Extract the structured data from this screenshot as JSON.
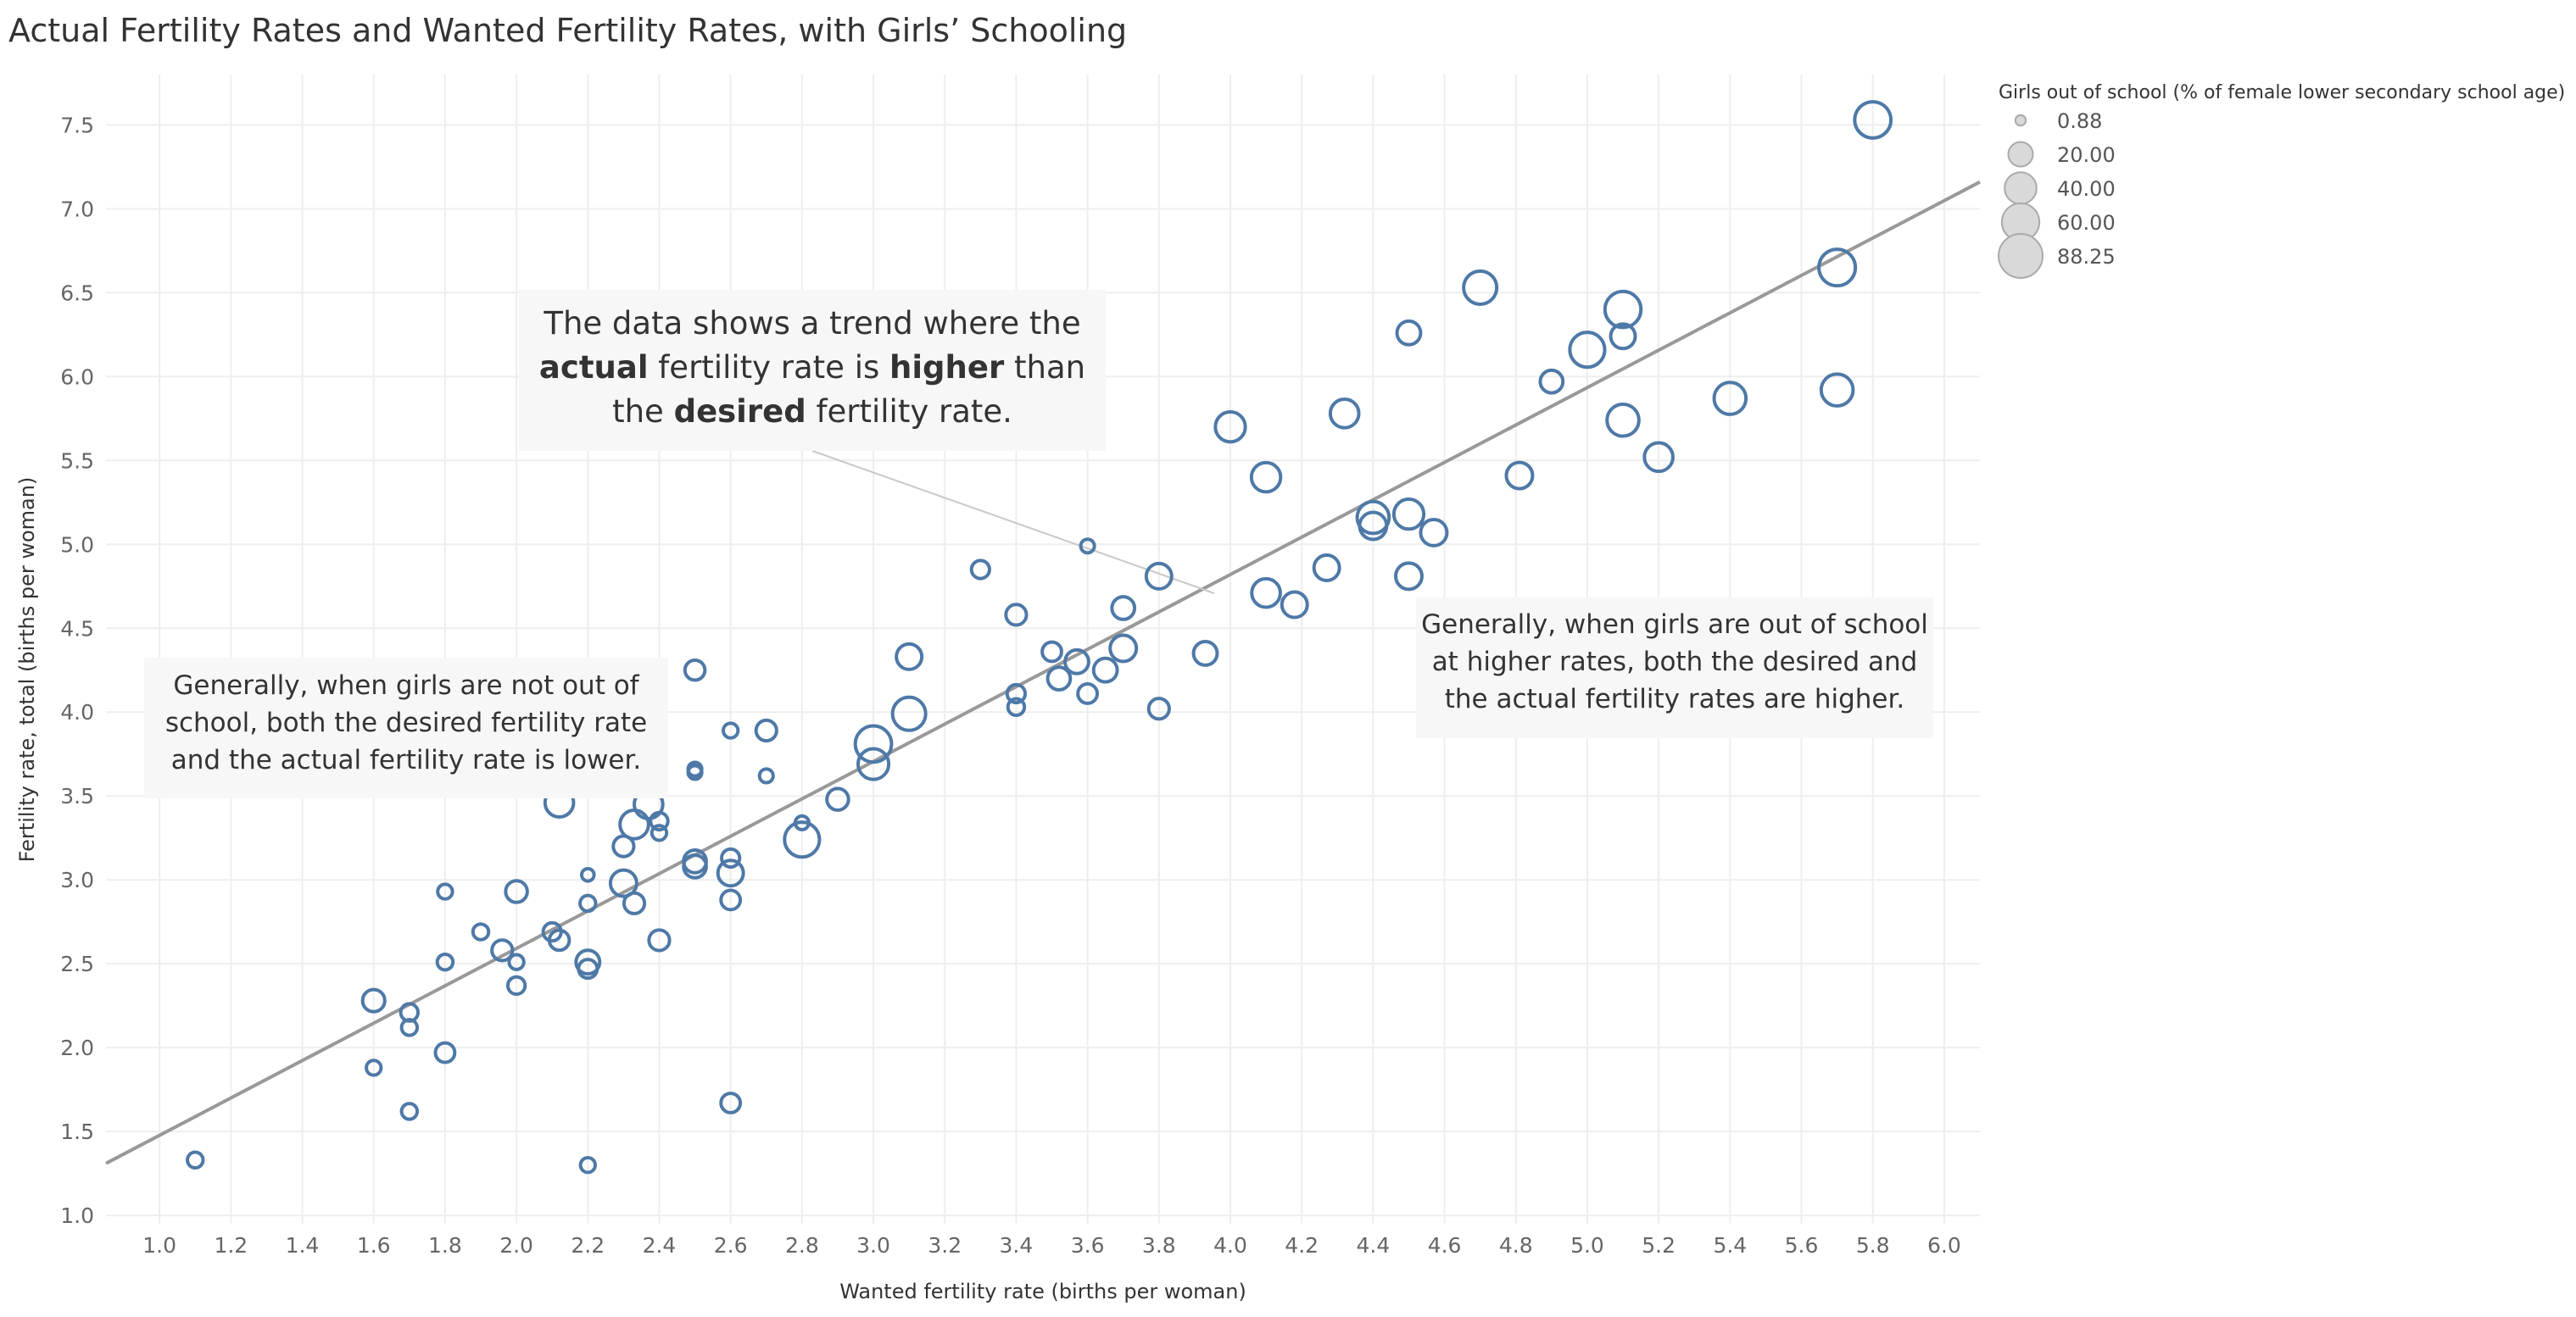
{
  "title": "Actual Fertility Rates and Wanted Fertility Rates, with Girls’ Schooling",
  "annotations": {
    "center": {
      "line1": "The data shows a trend where the",
      "line2_bold1": "actual",
      "line2_text": " fertility rate is ",
      "line2_bold2": "higher",
      "line2_end": " than",
      "line3_start": "the ",
      "line3_bold": "desired",
      "line3_end": " fertility rate."
    },
    "left": {
      "line1": "Generally, when girls are not out of",
      "line2": "school, both the desired fertility rate",
      "line3": "and the actual fertility rate is lower."
    },
    "right": {
      "line1": "Generally, when girls are out of school",
      "line2": "at higher rates, both the desired and",
      "line3": "the actual fertility rates are higher."
    }
  },
  "colors": {
    "point": "#4e79a7",
    "trend": "#999999",
    "grid": "#eeeeee",
    "legend_fill": "#d9d9d9",
    "legend_stroke": "#aaaaaa"
  },
  "chart_data": {
    "type": "scatter",
    "xlabel": "Wanted fertility rate (births per woman)",
    "ylabel": "Fertility rate, total (births per woman)",
    "xlim": [
      0.85,
      6.1
    ],
    "ylim": [
      0.95,
      7.8
    ],
    "x_ticks": [
      "1.0",
      "1.2",
      "1.4",
      "1.6",
      "1.8",
      "2.0",
      "2.2",
      "2.4",
      "2.6",
      "2.8",
      "3.0",
      "3.2",
      "3.4",
      "3.6",
      "3.8",
      "4.0",
      "4.2",
      "4.4",
      "4.6",
      "4.8",
      "5.0",
      "5.2",
      "5.4",
      "5.6",
      "5.8",
      "6.0"
    ],
    "y_ticks": [
      "1.0",
      "1.5",
      "2.0",
      "2.5",
      "3.0",
      "3.5",
      "4.0",
      "4.5",
      "5.0",
      "5.5",
      "6.0",
      "6.5",
      "7.0",
      "7.5"
    ],
    "grid": true,
    "size_legend": {
      "title": "Girls out of school (% of female lower secondary school age)",
      "placement": "top-right",
      "entries": [
        {
          "label": "0.88",
          "value": 0.88
        },
        {
          "label": "20.00",
          "value": 20
        },
        {
          "label": "40.00",
          "value": 40
        },
        {
          "label": "60.00",
          "value": 60
        },
        {
          "label": "88.25",
          "value": 88.25
        }
      ]
    },
    "trend_line": {
      "x": [
        0.85,
        6.1
      ],
      "y": [
        1.31,
        7.16
      ]
    },
    "points": [
      {
        "x": 1.1,
        "y": 1.33,
        "size": 5
      },
      {
        "x": 1.6,
        "y": 2.28,
        "size": 15
      },
      {
        "x": 1.6,
        "y": 1.88,
        "size": 4
      },
      {
        "x": 1.7,
        "y": 2.21,
        "size": 7
      },
      {
        "x": 1.7,
        "y": 2.12,
        "size": 5
      },
      {
        "x": 1.7,
        "y": 1.62,
        "size": 5
      },
      {
        "x": 1.8,
        "y": 2.93,
        "size": 4
      },
      {
        "x": 1.8,
        "y": 2.51,
        "size": 5
      },
      {
        "x": 1.8,
        "y": 1.97,
        "size": 10
      },
      {
        "x": 1.9,
        "y": 2.69,
        "size": 5
      },
      {
        "x": 1.96,
        "y": 2.58,
        "size": 12
      },
      {
        "x": 2.0,
        "y": 2.93,
        "size": 14
      },
      {
        "x": 2.0,
        "y": 2.51,
        "size": 4
      },
      {
        "x": 2.0,
        "y": 2.37,
        "size": 7
      },
      {
        "x": 2.1,
        "y": 2.69,
        "size": 8
      },
      {
        "x": 2.12,
        "y": 2.64,
        "size": 11
      },
      {
        "x": 2.12,
        "y": 3.46,
        "size": 30
      },
      {
        "x": 2.2,
        "y": 3.03,
        "size": 2
      },
      {
        "x": 2.2,
        "y": 2.86,
        "size": 5
      },
      {
        "x": 2.2,
        "y": 2.51,
        "size": 18
      },
      {
        "x": 2.2,
        "y": 2.47,
        "size": 9
      },
      {
        "x": 2.2,
        "y": 1.3,
        "size": 4
      },
      {
        "x": 2.3,
        "y": 3.2,
        "size": 12
      },
      {
        "x": 2.3,
        "y": 2.98,
        "size": 24
      },
      {
        "x": 2.33,
        "y": 3.33,
        "size": 30
      },
      {
        "x": 2.33,
        "y": 2.86,
        "size": 12
      },
      {
        "x": 2.37,
        "y": 3.45,
        "size": 30
      },
      {
        "x": 2.4,
        "y": 3.35,
        "size": 7
      },
      {
        "x": 2.4,
        "y": 3.28,
        "size": 4
      },
      {
        "x": 2.4,
        "y": 2.64,
        "size": 12
      },
      {
        "x": 2.5,
        "y": 4.25,
        "size": 11
      },
      {
        "x": 2.5,
        "y": 3.66,
        "size": 3
      },
      {
        "x": 2.5,
        "y": 3.64,
        "size": 3
      },
      {
        "x": 2.5,
        "y": 3.11,
        "size": 16
      },
      {
        "x": 2.5,
        "y": 3.08,
        "size": 16
      },
      {
        "x": 2.6,
        "y": 3.89,
        "size": 4
      },
      {
        "x": 2.6,
        "y": 3.13,
        "size": 8
      },
      {
        "x": 2.6,
        "y": 3.04,
        "size": 22
      },
      {
        "x": 2.6,
        "y": 2.88,
        "size": 10
      },
      {
        "x": 2.6,
        "y": 1.67,
        "size": 10
      },
      {
        "x": 2.7,
        "y": 3.89,
        "size": 12
      },
      {
        "x": 2.7,
        "y": 3.62,
        "size": 3
      },
      {
        "x": 2.8,
        "y": 3.34,
        "size": 3
      },
      {
        "x": 2.8,
        "y": 3.24,
        "size": 50
      },
      {
        "x": 2.9,
        "y": 3.48,
        "size": 14
      },
      {
        "x": 3.0,
        "y": 3.81,
        "size": 55
      },
      {
        "x": 3.0,
        "y": 3.69,
        "size": 36
      },
      {
        "x": 3.1,
        "y": 4.33,
        "size": 22
      },
      {
        "x": 3.1,
        "y": 3.99,
        "size": 44
      },
      {
        "x": 3.3,
        "y": 4.85,
        "size": 8
      },
      {
        "x": 3.4,
        "y": 4.58,
        "size": 12
      },
      {
        "x": 3.4,
        "y": 4.11,
        "size": 8
      },
      {
        "x": 3.4,
        "y": 4.03,
        "size": 6
      },
      {
        "x": 3.5,
        "y": 4.36,
        "size": 10
      },
      {
        "x": 3.52,
        "y": 4.2,
        "size": 16
      },
      {
        "x": 3.57,
        "y": 4.3,
        "size": 18
      },
      {
        "x": 3.6,
        "y": 4.99,
        "size": 3
      },
      {
        "x": 3.6,
        "y": 4.11,
        "size": 10
      },
      {
        "x": 3.65,
        "y": 4.25,
        "size": 18
      },
      {
        "x": 3.7,
        "y": 4.62,
        "size": 16
      },
      {
        "x": 3.7,
        "y": 4.38,
        "size": 24
      },
      {
        "x": 3.8,
        "y": 4.81,
        "size": 22
      },
      {
        "x": 3.8,
        "y": 4.02,
        "size": 12
      },
      {
        "x": 3.93,
        "y": 4.35,
        "size": 18
      },
      {
        "x": 4.0,
        "y": 5.7,
        "size": 34
      },
      {
        "x": 4.1,
        "y": 5.4,
        "size": 32
      },
      {
        "x": 4.1,
        "y": 4.71,
        "size": 30
      },
      {
        "x": 4.18,
        "y": 4.64,
        "size": 22
      },
      {
        "x": 4.27,
        "y": 4.86,
        "size": 22
      },
      {
        "x": 4.32,
        "y": 5.78,
        "size": 30
      },
      {
        "x": 4.4,
        "y": 5.16,
        "size": 40
      },
      {
        "x": 4.4,
        "y": 5.11,
        "size": 26
      },
      {
        "x": 4.5,
        "y": 6.26,
        "size": 18
      },
      {
        "x": 4.5,
        "y": 5.18,
        "size": 34
      },
      {
        "x": 4.5,
        "y": 4.81,
        "size": 24
      },
      {
        "x": 4.57,
        "y": 5.07,
        "size": 24
      },
      {
        "x": 4.7,
        "y": 6.53,
        "size": 44
      },
      {
        "x": 4.81,
        "y": 5.41,
        "size": 24
      },
      {
        "x": 4.9,
        "y": 5.97,
        "size": 16
      },
      {
        "x": 5.0,
        "y": 6.16,
        "size": 50
      },
      {
        "x": 5.1,
        "y": 6.4,
        "size": 54
      },
      {
        "x": 5.1,
        "y": 6.24,
        "size": 20
      },
      {
        "x": 5.1,
        "y": 5.74,
        "size": 40
      },
      {
        "x": 5.2,
        "y": 5.52,
        "size": 30
      },
      {
        "x": 5.4,
        "y": 5.87,
        "size": 40
      },
      {
        "x": 5.7,
        "y": 6.65,
        "size": 56
      },
      {
        "x": 5.7,
        "y": 5.92,
        "size": 40
      },
      {
        "x": 5.8,
        "y": 7.53,
        "size": 55
      }
    ]
  }
}
